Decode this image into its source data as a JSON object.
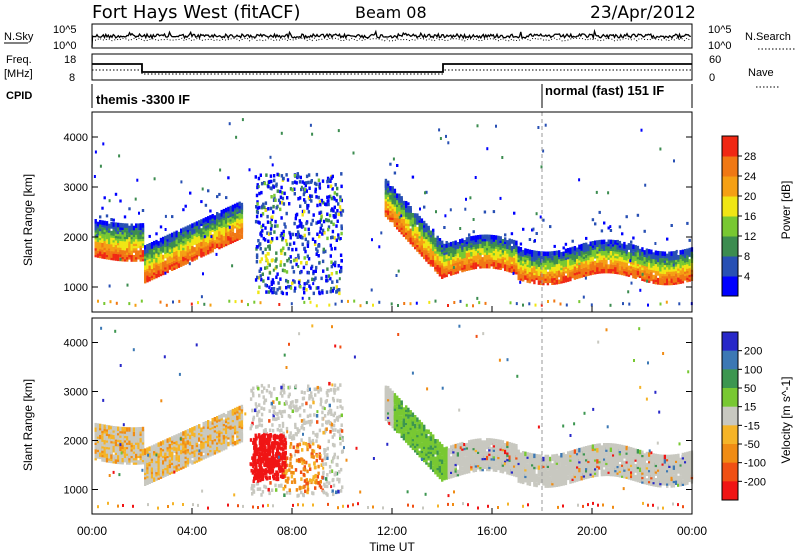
{
  "header": {
    "station": "Fort Hays West (fitACF)",
    "beam": "Beam 08",
    "date": "23/Apr/2012"
  },
  "strip_labels": {
    "nsky": "N.Sky",
    "nsky_top": "10^5",
    "nsky_bottom": "10^0",
    "nsearch": "N.Search",
    "nsearch_top": "10^5",
    "nsearch_bottom": "10^0",
    "freq": "Freq.",
    "freq_unit": "[MHz]",
    "freq_top": "18",
    "freq_bottom": "8",
    "nave": "Nave",
    "nave_top": "60",
    "nave_bottom": "0",
    "cpid": "CPID",
    "mode1": "themis -3300 IF",
    "mode2": "normal (fast) 151 IF"
  },
  "chart_data": [
    {
      "type": "heatmap",
      "name": "power",
      "ylabel": "Slant Range [km]",
      "y_ticks": [
        "1000",
        "2000",
        "3000",
        "4000"
      ],
      "ylim": [
        500,
        4500
      ],
      "colorbar": {
        "label": "Power [dB]",
        "ticks": [
          "4",
          "8",
          "12",
          "16",
          "20",
          "24",
          "28"
        ],
        "colors": [
          "#0000ff",
          "#2850b4",
          "#3c8c50",
          "#78c832",
          "#f0e614",
          "#f5a014",
          "#f07814",
          "#f02814"
        ]
      },
      "bands": [
        {
          "x": [
            0.1,
            2.0
          ],
          "y": [
            1550,
            2150
          ]
        },
        {
          "x": [
            2.0,
            6.0
          ],
          "y": [
            1200,
            2700
          ]
        },
        {
          "x": [
            6.5,
            10.0
          ],
          "y": [
            900,
            3300
          ]
        },
        {
          "x": [
            11.7,
            14.0
          ],
          "y": [
            1100,
            3000
          ]
        },
        {
          "x": [
            14.0,
            24.0
          ],
          "y": [
            1200,
            2200
          ]
        }
      ]
    },
    {
      "type": "heatmap",
      "name": "velocity",
      "ylabel": "Slant Range [km]",
      "xlabel": "Time UT",
      "x_ticks": [
        "00:00",
        "04:00",
        "08:00",
        "12:00",
        "16:00",
        "20:00",
        "00:00"
      ],
      "y_ticks": [
        "1000",
        "2000",
        "3000",
        "4000"
      ],
      "ylim": [
        500,
        4500
      ],
      "colorbar": {
        "label": "Velocity [m s^-1]",
        "ticks": [
          "200",
          "100",
          "50",
          "15",
          "-15",
          "-50",
          "-100",
          "-200"
        ],
        "colors": [
          "#2828c8",
          "#3c78b4",
          "#3c9650",
          "#78c832",
          "#c8c8c0",
          "#f5b428",
          "#f08c14",
          "#f05014",
          "#f01414"
        ]
      }
    }
  ]
}
